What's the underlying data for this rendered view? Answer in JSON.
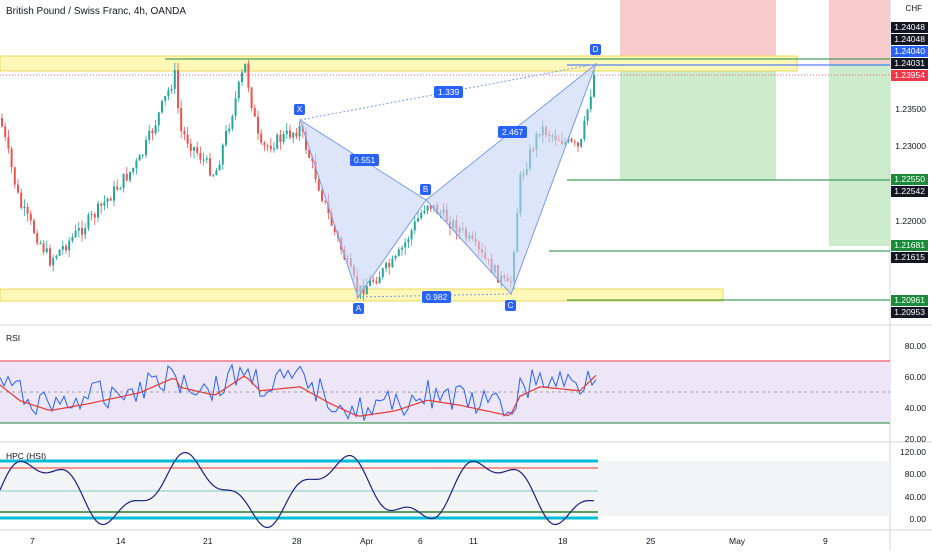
{
  "header": {
    "title": "British Pound / Swiss Franc, 4h, OANDA",
    "currency": "CHF"
  },
  "price_axis": {
    "ticks": [
      "1.23500",
      "1.23000",
      "1.22000"
    ],
    "labels": [
      {
        "text": "1.24048",
        "color": "#131722"
      },
      {
        "text": "1.24048",
        "color": "#131722"
      },
      {
        "text": "1.24040",
        "color": "#2962ff"
      },
      {
        "text": "1.24031",
        "color": "#131722"
      },
      {
        "text": "1.23954",
        "color": "#f23645"
      },
      {
        "text": "1.22550",
        "color": "#1b8a3a"
      },
      {
        "text": "1.22542",
        "color": "#131722"
      },
      {
        "text": "1.21681",
        "color": "#1b8a3a"
      },
      {
        "text": "1.21615",
        "color": "#131722"
      },
      {
        "text": "1.20961",
        "color": "#1b8a3a"
      },
      {
        "text": "1.20953",
        "color": "#131722"
      }
    ]
  },
  "pattern": {
    "points": [
      "X",
      "A",
      "B",
      "C",
      "D"
    ],
    "ratios": [
      "0.551",
      "1.339",
      "2.467",
      "0.982"
    ]
  },
  "rsi_panel": {
    "label": "RSI",
    "ticks": [
      "80.00",
      "60.00",
      "40.00",
      "20.00"
    ]
  },
  "hpc_panel": {
    "label": "HPC (HSI)",
    "ticks": [
      "120.00",
      "80.00",
      "40.00",
      "0.00"
    ]
  },
  "date_axis": [
    "7",
    "14",
    "21",
    "28",
    "Apr",
    "6",
    "11",
    "18",
    "25",
    "May",
    "9"
  ],
  "colors": {
    "bull": "#26a69a",
    "bear": "#ef5350",
    "pattern_fill": "#c5d4f5",
    "accent": "#2962ff"
  }
}
